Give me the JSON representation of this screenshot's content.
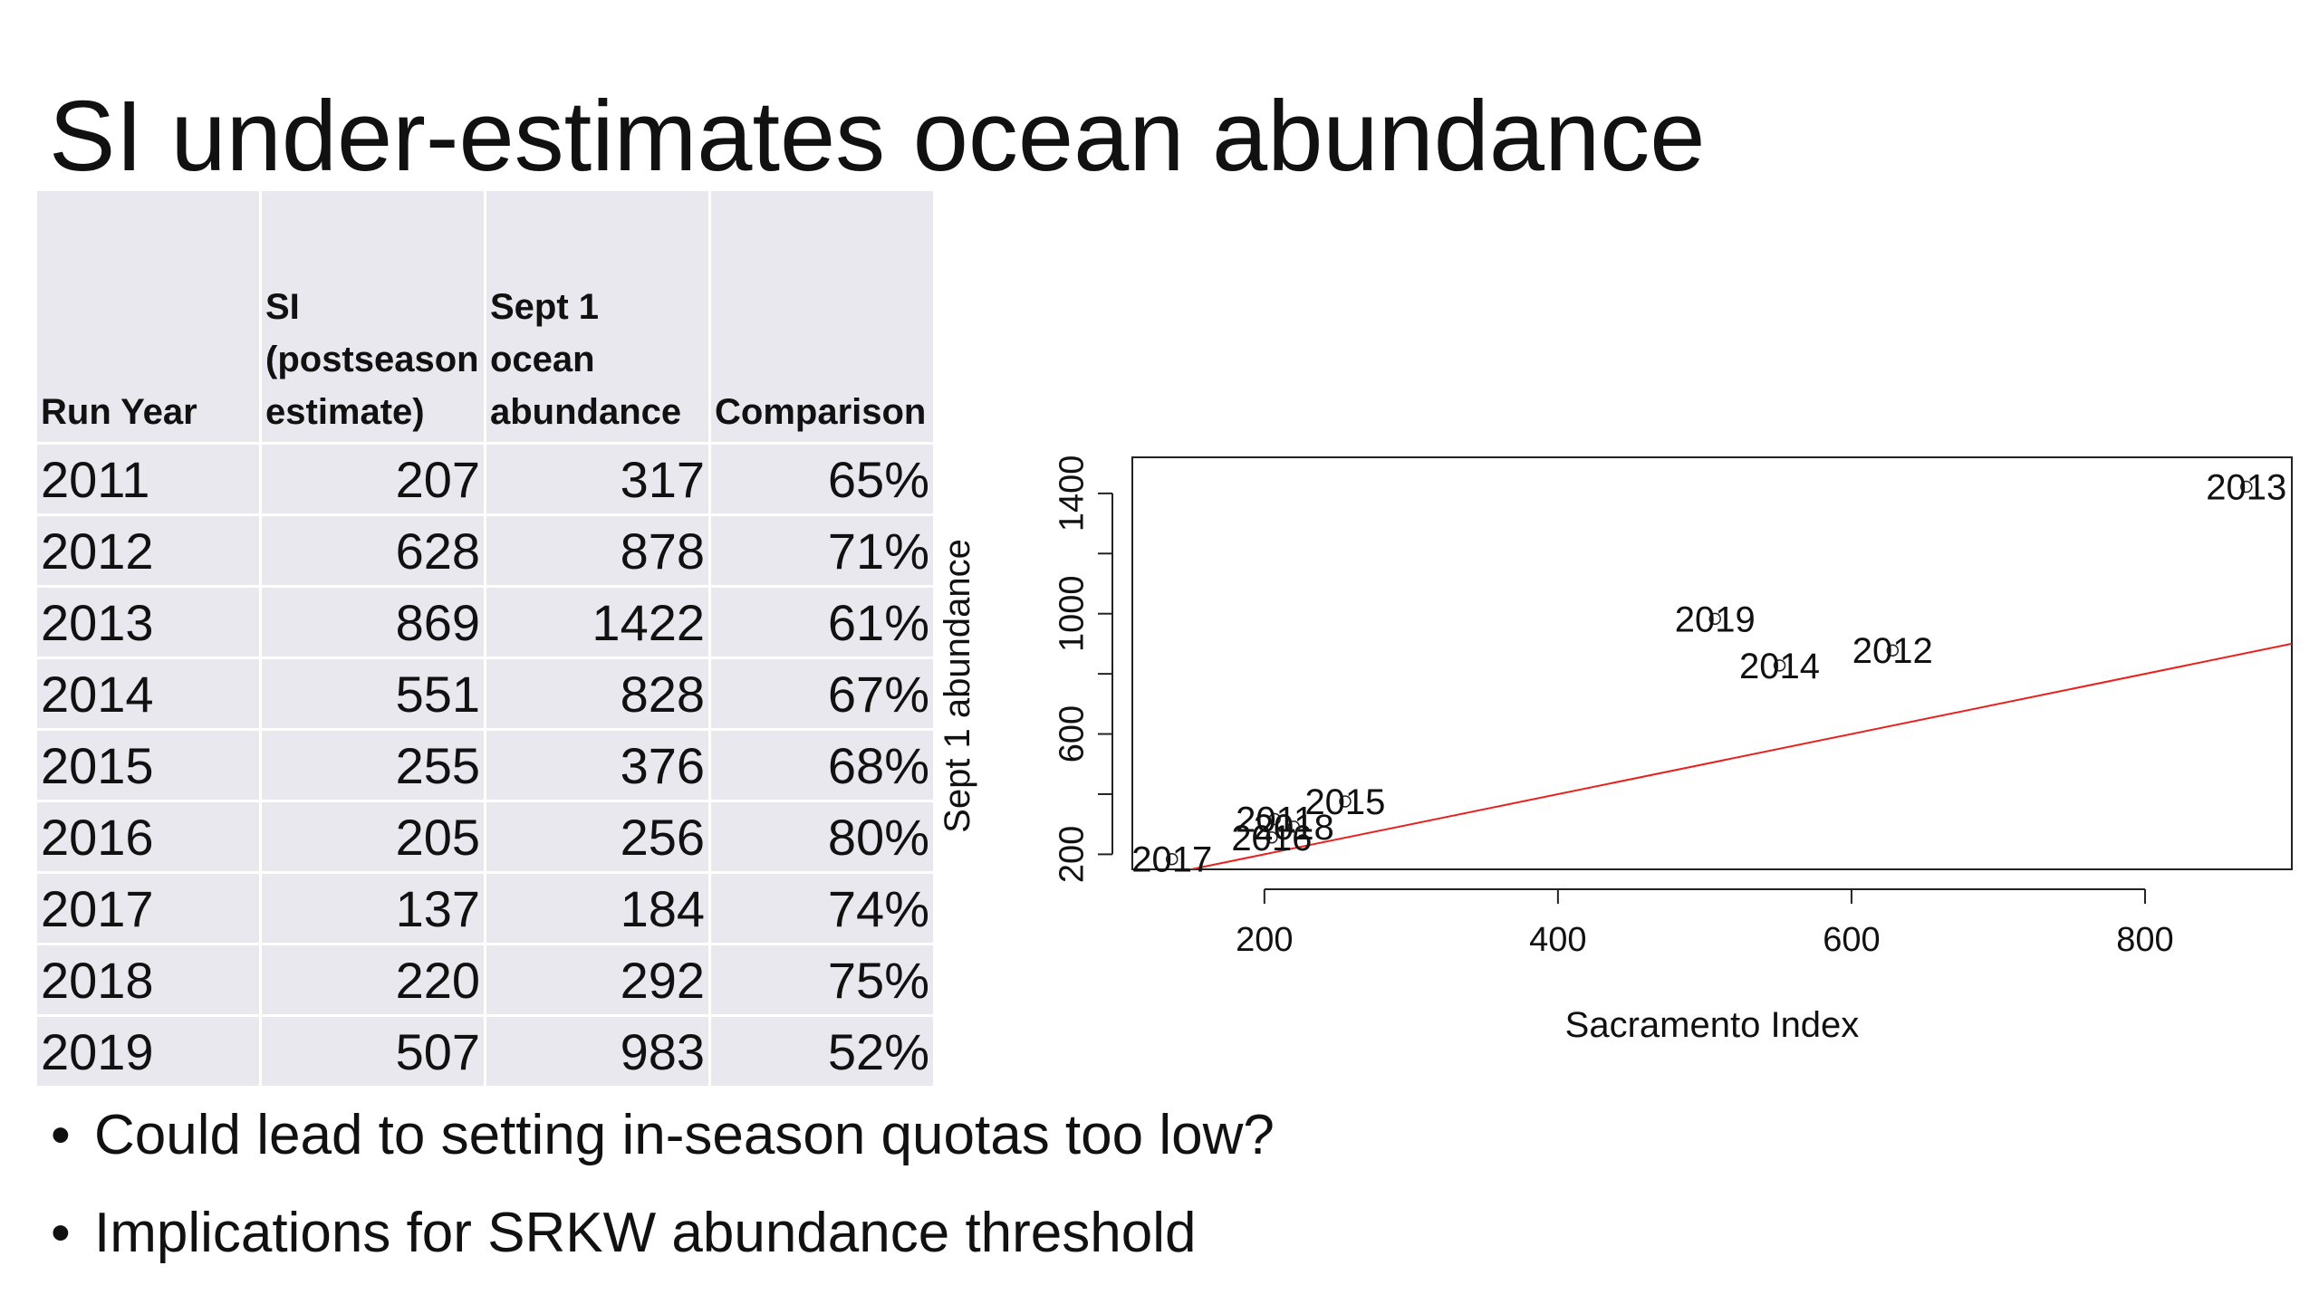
{
  "slide": {
    "title": "SI under-estimates ocean abundance"
  },
  "table": {
    "headers": [
      [
        "Run Year"
      ],
      [
        "SI",
        "(postseason",
        "estimate)"
      ],
      [
        "Sept 1",
        "ocean",
        "abundance"
      ],
      [
        "Comparison"
      ]
    ],
    "rows": [
      [
        "2011",
        "207",
        "317",
        "65%"
      ],
      [
        "2012",
        "628",
        "878",
        "71%"
      ],
      [
        "2013",
        "869",
        "1422",
        "61%"
      ],
      [
        "2014",
        "551",
        "828",
        "67%"
      ],
      [
        "2015",
        "255",
        "376",
        "68%"
      ],
      [
        "2016",
        "205",
        "256",
        "80%"
      ],
      [
        "2017",
        "137",
        "184",
        "74%"
      ],
      [
        "2018",
        "220",
        "292",
        "75%"
      ],
      [
        "2019",
        "507",
        "983",
        "52%"
      ]
    ]
  },
  "bullets": [
    "Could lead to setting in-season quotas too low?",
    "Implications for SRKW abundance threshold"
  ],
  "chart_data": {
    "type": "scatter",
    "xlabel": "Sacramento Index",
    "ylabel": "Sept 1 abundance",
    "xlim": [
      110,
      900
    ],
    "ylim": [
      150,
      1520
    ],
    "xticks": [
      200,
      400,
      600,
      800
    ],
    "yticks": [
      200,
      600,
      1000,
      1400
    ],
    "yticks_minor": [
      200,
      400,
      600,
      800,
      1000,
      1200,
      1400
    ],
    "points": [
      {
        "label": "2011",
        "x": 207,
        "y": 317
      },
      {
        "label": "2012",
        "x": 628,
        "y": 878
      },
      {
        "label": "2013",
        "x": 869,
        "y": 1422
      },
      {
        "label": "2014",
        "x": 551,
        "y": 828
      },
      {
        "label": "2015",
        "x": 255,
        "y": 376
      },
      {
        "label": "2016",
        "x": 205,
        "y": 256
      },
      {
        "label": "2017",
        "x": 137,
        "y": 184
      },
      {
        "label": "2018",
        "x": 220,
        "y": 292
      },
      {
        "label": "2019",
        "x": 507,
        "y": 983
      }
    ],
    "reference_line": {
      "slope": 1,
      "intercept": 0,
      "color": "#e8211e"
    },
    "grid": false,
    "box": true
  }
}
